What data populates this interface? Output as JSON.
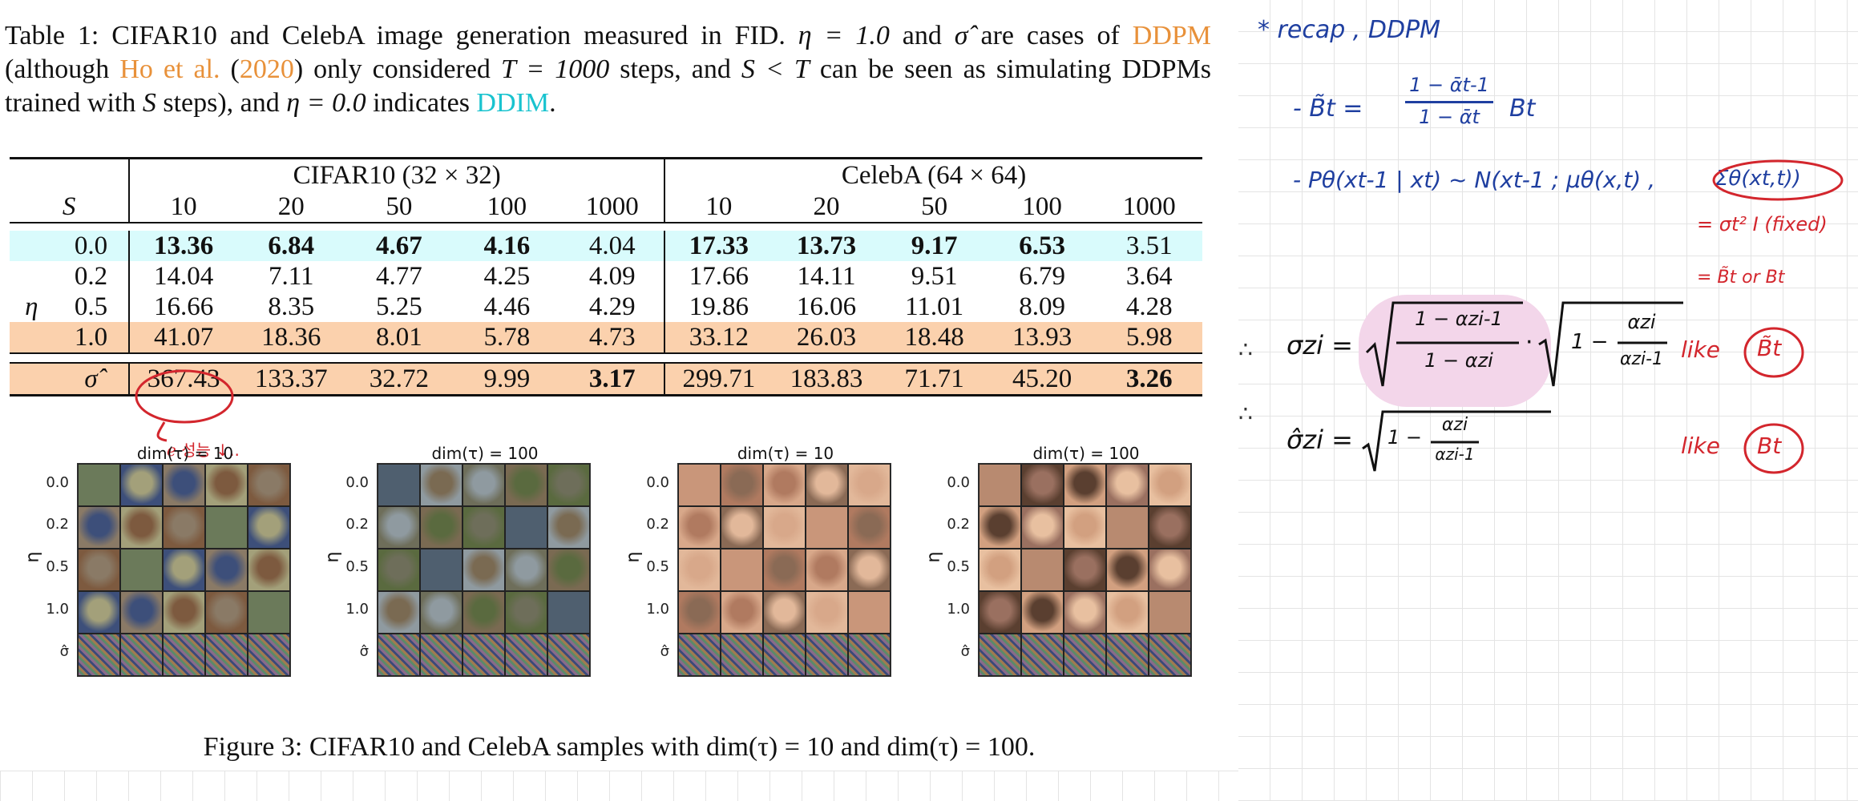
{
  "caption": {
    "p1": "Table 1: CIFAR10 and CelebA image generation measured in FID. ",
    "eta1": "η = 1.0",
    "p2": " and ",
    "sigma": "σ̂",
    "p3": " are cases of ",
    "ddpm": "DDPM",
    "p4": " (although ",
    "ho": "Ho et al.",
    "p5": " (",
    "year": "2020",
    "p6": ") only considered ",
    "t1000": "T = 1000",
    "p7": " steps, and ",
    "st": "S < T",
    "p8": " can be seen as simulating DDPMs trained with ",
    "s": "S",
    "p9": " steps), and ",
    "eta0": "η = 0.0",
    "p10": " indicates ",
    "ddim": "DDIM",
    "p11": "."
  },
  "table": {
    "group_cifar": "CIFAR10 (32 × 32)",
    "group_celeba": "CelebA (64 × 64)",
    "s_label": "S",
    "eta_label": "η",
    "steps": [
      "10",
      "20",
      "50",
      "100",
      "1000",
      "10",
      "20",
      "50",
      "100",
      "1000"
    ],
    "rows": [
      {
        "label": "0.0",
        "values": [
          "13.36",
          "6.84",
          "4.67",
          "4.16",
          "4.04",
          "17.33",
          "13.73",
          "9.17",
          "6.53",
          "3.51"
        ]
      },
      {
        "label": "0.2",
        "values": [
          "14.04",
          "7.11",
          "4.77",
          "4.25",
          "4.09",
          "17.66",
          "14.11",
          "9.51",
          "6.79",
          "3.64"
        ]
      },
      {
        "label": "0.5",
        "values": [
          "16.66",
          "8.35",
          "5.25",
          "4.46",
          "4.29",
          "19.86",
          "16.06",
          "11.01",
          "8.09",
          "4.28"
        ]
      },
      {
        "label": "1.0",
        "values": [
          "41.07",
          "18.36",
          "8.01",
          "5.78",
          "4.73",
          "33.12",
          "26.03",
          "18.48",
          "13.93",
          "5.98"
        ]
      }
    ],
    "sigma_row": {
      "label": "σ̂",
      "values": [
        "367.43",
        "133.37",
        "32.72",
        "9.99",
        "3.17",
        "299.71",
        "183.83",
        "71.71",
        "45.20",
        "3.26"
      ]
    }
  },
  "figures": [
    {
      "title": "dim(τ) = 10"
    },
    {
      "title": "dim(τ) = 100"
    },
    {
      "title": "dim(τ) = 10"
    },
    {
      "title": "dim(τ) = 100"
    }
  ],
  "fig_rows": [
    "0.0",
    "0.2",
    "0.5",
    "1.0",
    "σ̂"
  ],
  "fig_eta": "η",
  "figure_caption": "Figure 3: CIFAR10 and CelebA samples with dim(τ) = 10 and dim(τ) = 100.",
  "notes": {
    "annot_under_table": "ℯ 성능 ↓..",
    "recap": "* recap , DDPM",
    "beta_tilde": "- B̃t =",
    "beta_num": "1 − ᾱt-1",
    "beta_den": "1 − ᾱt",
    "beta_t": "Bt",
    "p_theta": "- Pθ(xt-1 | xt) ~ N(xt-1 ; μθ(x,t) ,",
    "sigma_theta": "Σθ(xt,t))",
    "fixed": "= σt² I (fixed)",
    "or": "= B̃t or Bt",
    "dots1": "∴",
    "sigma_tau": "σzi =",
    "frac1_num": "1 − αzi-1",
    "frac1_den": "1 − αzi",
    "mult": "·",
    "frac2_pre": "1 −",
    "frac2_num": "αzi",
    "frac2_den": "αzi-1",
    "like1": "like",
    "like1_term": "B̃t",
    "dots2": "∴",
    "sigma_hat": "σ̂zi =",
    "frac3_pre": "1 −",
    "frac3_num": "αzi",
    "frac3_den": "αzi-1",
    "like2": "like",
    "like2_term": "Bt"
  },
  "colors": {
    "highlight_cyan": "#d9fbfc",
    "highlight_orange": "#fbd1ad",
    "ink_blue": "#1f3fa0",
    "ink_red": "#d3262d",
    "link_orange": "#e8913a",
    "link_cyan": "#19c3cf"
  }
}
